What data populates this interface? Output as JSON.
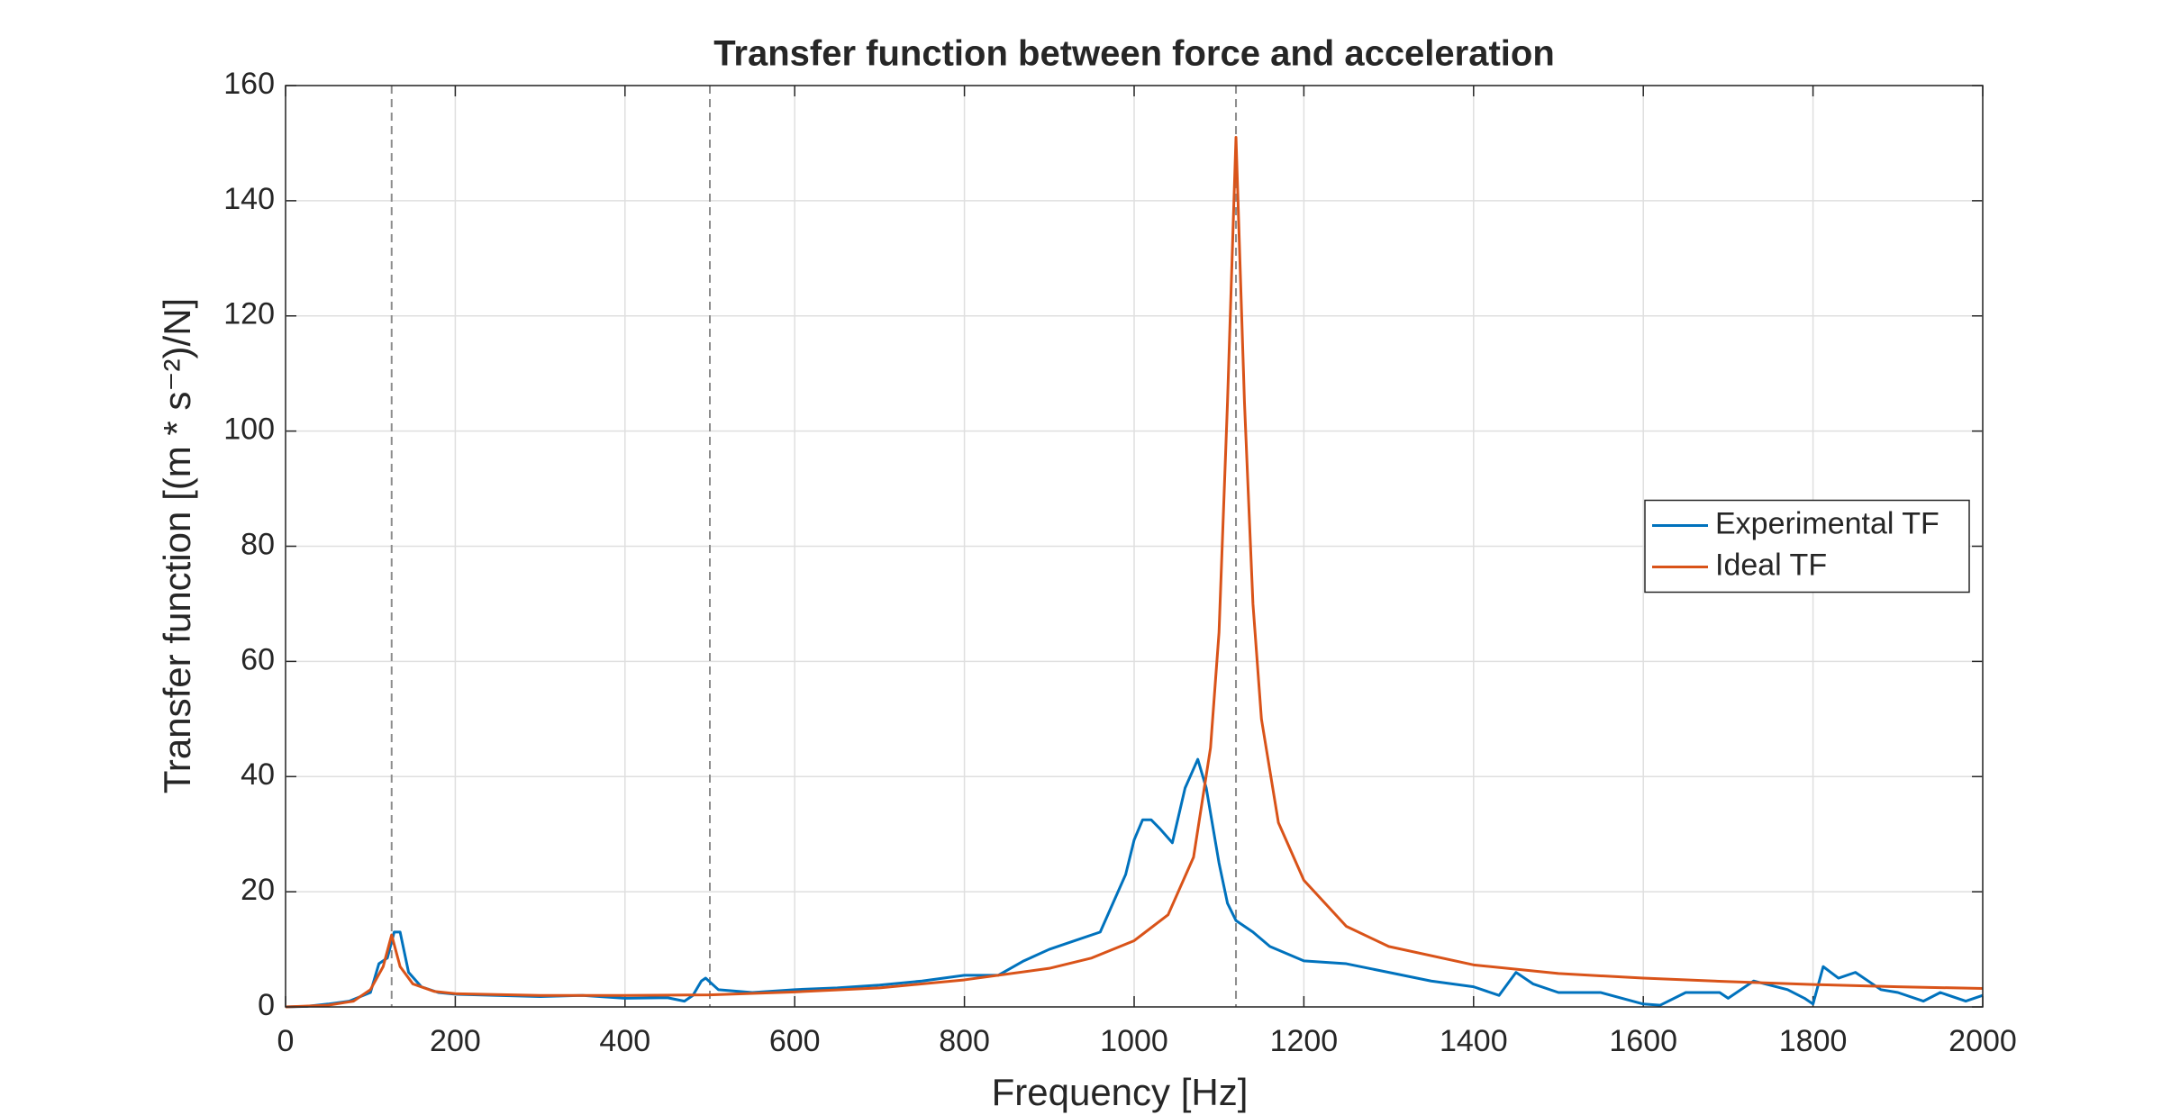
{
  "chart_data": {
    "type": "line",
    "title": "Transfer function between force and acceleration",
    "xlabel": "Frequency [Hz]",
    "ylabel": "Transfer function [(m * s⁻²)/N]",
    "xlim": [
      0,
      2000
    ],
    "xticks": [
      0,
      200,
      400,
      600,
      800,
      1000,
      1200,
      1400,
      1600,
      1800,
      2000
    ],
    "ylim": [
      0,
      160
    ],
    "yticks": [
      0,
      20,
      40,
      60,
      80,
      100,
      120,
      140,
      160
    ],
    "grid": true,
    "legend": "east",
    "vlines": [
      125,
      500,
      1120
    ],
    "series": [
      {
        "name": "Experimental TF",
        "color": "#0072bd",
        "x": [
          0,
          25,
          50,
          75,
          100,
          110,
          120,
          128,
          135,
          145,
          160,
          180,
          200,
          250,
          300,
          350,
          400,
          450,
          470,
          480,
          490,
          495,
          510,
          550,
          600,
          650,
          700,
          750,
          800,
          840,
          870,
          900,
          930,
          960,
          975,
          990,
          1000,
          1010,
          1020,
          1030,
          1045,
          1060,
          1075,
          1085,
          1100,
          1110,
          1120,
          1140,
          1160,
          1200,
          1250,
          1300,
          1350,
          1400,
          1430,
          1450,
          1470,
          1500,
          1550,
          1600,
          1620,
          1650,
          1690,
          1700,
          1730,
          1770,
          1790,
          1800,
          1812,
          1830,
          1850,
          1880,
          1900,
          1930,
          1950,
          1980,
          2000
        ],
        "values": [
          0,
          0.1,
          0.5,
          1,
          2.5,
          7.5,
          8.5,
          13,
          13,
          6,
          3.5,
          2.5,
          2.2,
          2,
          1.8,
          2,
          1.5,
          1.6,
          1,
          2,
          4.5,
          5,
          3,
          2.5,
          3,
          3.3,
          3.8,
          4.5,
          5.5,
          5.5,
          8,
          10,
          11.5,
          13,
          18,
          23,
          29,
          32.5,
          32.5,
          31,
          28.5,
          38,
          43,
          38,
          25,
          18,
          15,
          13,
          10.5,
          8,
          7.5,
          6,
          4.5,
          3.5,
          2,
          6,
          4,
          2.5,
          2.5,
          0.5,
          0.3,
          2.5,
          2.5,
          1.5,
          4.5,
          3,
          1.5,
          0.5,
          7,
          5,
          6,
          3,
          2.5,
          1,
          2.5,
          1,
          2
        ]
      },
      {
        "name": "Ideal TF",
        "color": "#d95319",
        "x": [
          0,
          50,
          80,
          100,
          115,
          125,
          135,
          150,
          175,
          200,
          300,
          400,
          500,
          600,
          700,
          800,
          900,
          950,
          1000,
          1040,
          1070,
          1090,
          1100,
          1110,
          1120,
          1130,
          1140,
          1150,
          1170,
          1200,
          1250,
          1300,
          1400,
          1500,
          1600,
          1700,
          1800,
          1900,
          2000
        ],
        "values": [
          0,
          0.3,
          1,
          3,
          7,
          12.5,
          7,
          4,
          2.7,
          2.3,
          2,
          2,
          2.1,
          2.6,
          3.3,
          4.7,
          6.7,
          8.5,
          11.5,
          16,
          26,
          45,
          65,
          105,
          151,
          105,
          70,
          50,
          32,
          22,
          14,
          10.5,
          7.3,
          5.8,
          5,
          4.4,
          3.9,
          3.5,
          3.2
        ]
      }
    ]
  }
}
